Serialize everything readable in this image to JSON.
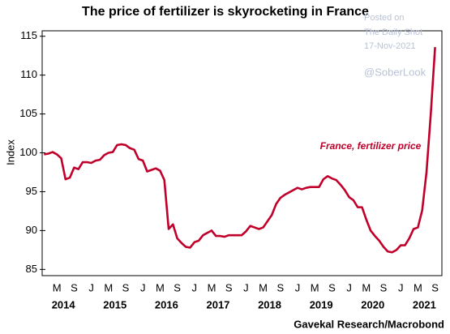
{
  "chart_data": {
    "type": "line",
    "title": "The price of fertilizer is skyrocketing in France",
    "y_label": "Index",
    "annotation": "France, fertilizer price",
    "source": "Gavekal Research/Macrobond",
    "watermark": [
      "Posted on",
      "The Daily Shot",
      "17-Nov-2021",
      "@SoberLook"
    ],
    "color": "#c0002a",
    "categories": [
      null,
      null,
      null,
      "M",
      null,
      null,
      null,
      "S",
      null,
      null,
      null,
      "J",
      null,
      null,
      null,
      "M",
      null,
      null,
      null,
      "S",
      null,
      null,
      null,
      "J",
      null,
      null,
      null,
      "M",
      null,
      null,
      null,
      "S",
      null,
      null,
      null,
      "J",
      null,
      null,
      null,
      "M",
      null,
      null,
      null,
      "S",
      null,
      null,
      null,
      "J",
      null,
      null,
      null,
      "M",
      null,
      null,
      null,
      "S",
      null,
      null,
      null,
      "J",
      null,
      null,
      null,
      "M",
      null,
      null,
      null,
      "S",
      null,
      null,
      null,
      "J",
      null,
      null,
      null,
      "M",
      null,
      null,
      null,
      "S",
      null,
      null,
      null,
      "J",
      null,
      null,
      null,
      "M",
      null,
      null,
      null,
      "S"
    ],
    "years": [
      "2014",
      "2015",
      "2016",
      "2017",
      "2018",
      "2019",
      "2020",
      "2021"
    ],
    "values": [
      99.8,
      99.9,
      100.1,
      99.8,
      99.3,
      96.6,
      96.8,
      98.1,
      97.9,
      98.8,
      98.8,
      98.7,
      99.0,
      99.1,
      99.7,
      100.0,
      100.1,
      101.0,
      101.1,
      101.0,
      100.6,
      100.4,
      99.2,
      99.0,
      97.6,
      97.8,
      98.0,
      97.7,
      96.5,
      90.2,
      90.8,
      89.0,
      88.4,
      87.9,
      87.8,
      88.5,
      88.7,
      89.4,
      89.7,
      90.0,
      89.3,
      89.3,
      89.2,
      89.4,
      89.4,
      89.4,
      89.4,
      89.9,
      90.6,
      90.4,
      90.2,
      90.4,
      91.2,
      92.0,
      93.4,
      94.2,
      94.6,
      94.9,
      95.2,
      95.5,
      95.3,
      95.5,
      95.6,
      95.6,
      95.6,
      96.6,
      97.0,
      96.7,
      96.5,
      95.9,
      95.2,
      94.3,
      93.9,
      93.0,
      93.0,
      91.4,
      90.0,
      89.3,
      88.7,
      87.9,
      87.3,
      87.2,
      87.5,
      88.1,
      88.1,
      89.0,
      90.2,
      90.4,
      92.6,
      97.5,
      105.0,
      113.6
    ],
    "ylim": [
      84.2,
      115.7
    ],
    "yticks": [
      85,
      90,
      95,
      100,
      105,
      110,
      115
    ],
    "grid": false
  }
}
